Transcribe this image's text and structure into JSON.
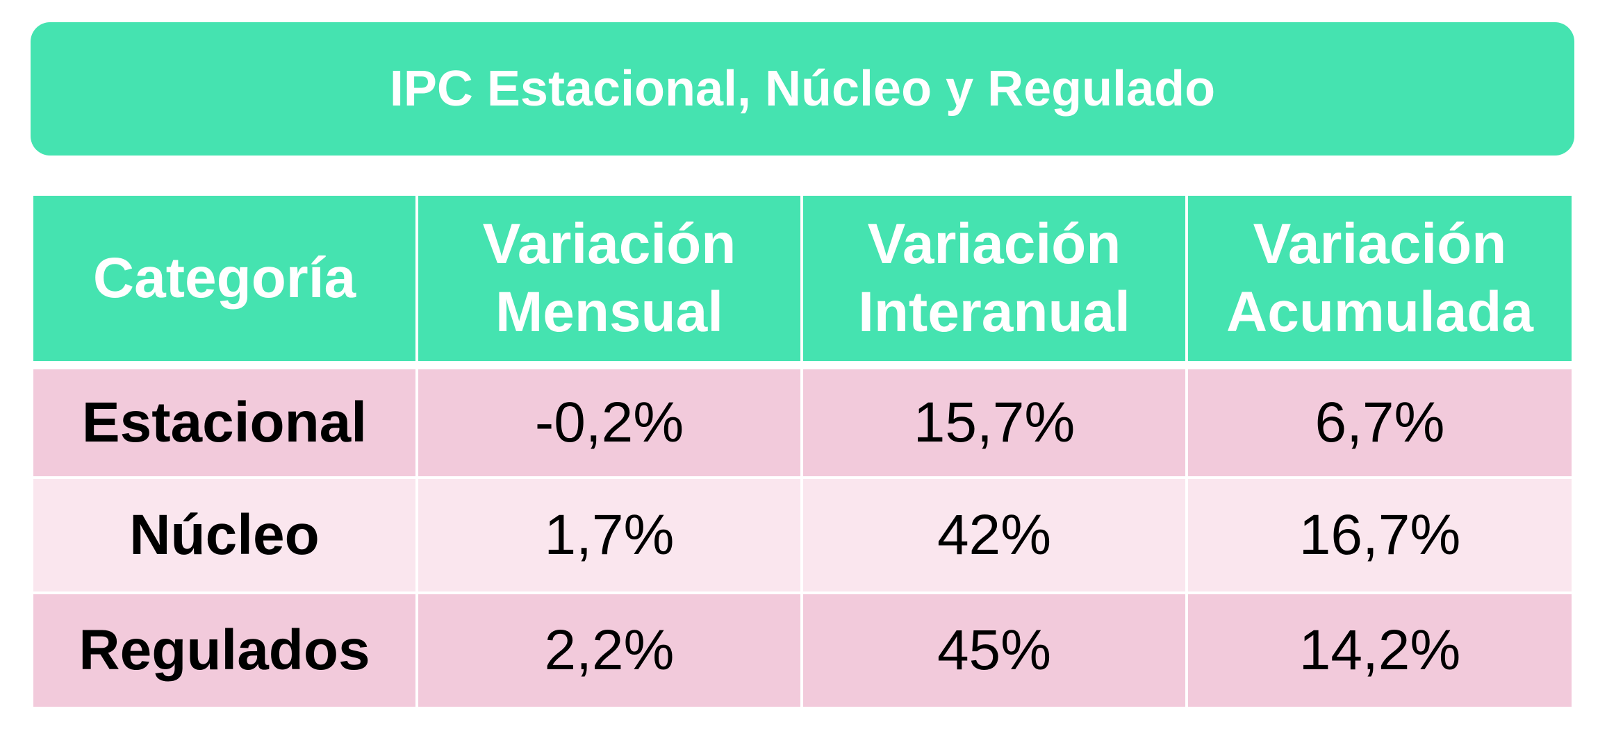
{
  "chart_data": {
    "type": "table",
    "title": "IPC Estacional, Núcleo y Regulado",
    "columns": [
      {
        "key": "categoria",
        "label_lines": [
          "Categoría"
        ]
      },
      {
        "key": "mensual",
        "label_lines": [
          "Variación",
          "Mensual"
        ]
      },
      {
        "key": "interanual",
        "label_lines": [
          "Variación",
          "Interanual"
        ]
      },
      {
        "key": "acumulada",
        "label_lines": [
          "Variación",
          "Acumulada"
        ]
      }
    ],
    "rows": [
      {
        "categoria": "Estacional",
        "mensual": "-0,2%",
        "interanual": "15,7%",
        "acumulada": "6,7%"
      },
      {
        "categoria": "Núcleo",
        "mensual": "1,7%",
        "interanual": "42%",
        "acumulada": "16,7%"
      },
      {
        "categoria": "Regulados",
        "mensual": "2,2%",
        "interanual": "45%",
        "acumulada": "14,2%"
      }
    ],
    "colors": {
      "header": "#45e3b0",
      "row_dark": "#f2cadb",
      "row_light": "#fae6ee"
    }
  }
}
